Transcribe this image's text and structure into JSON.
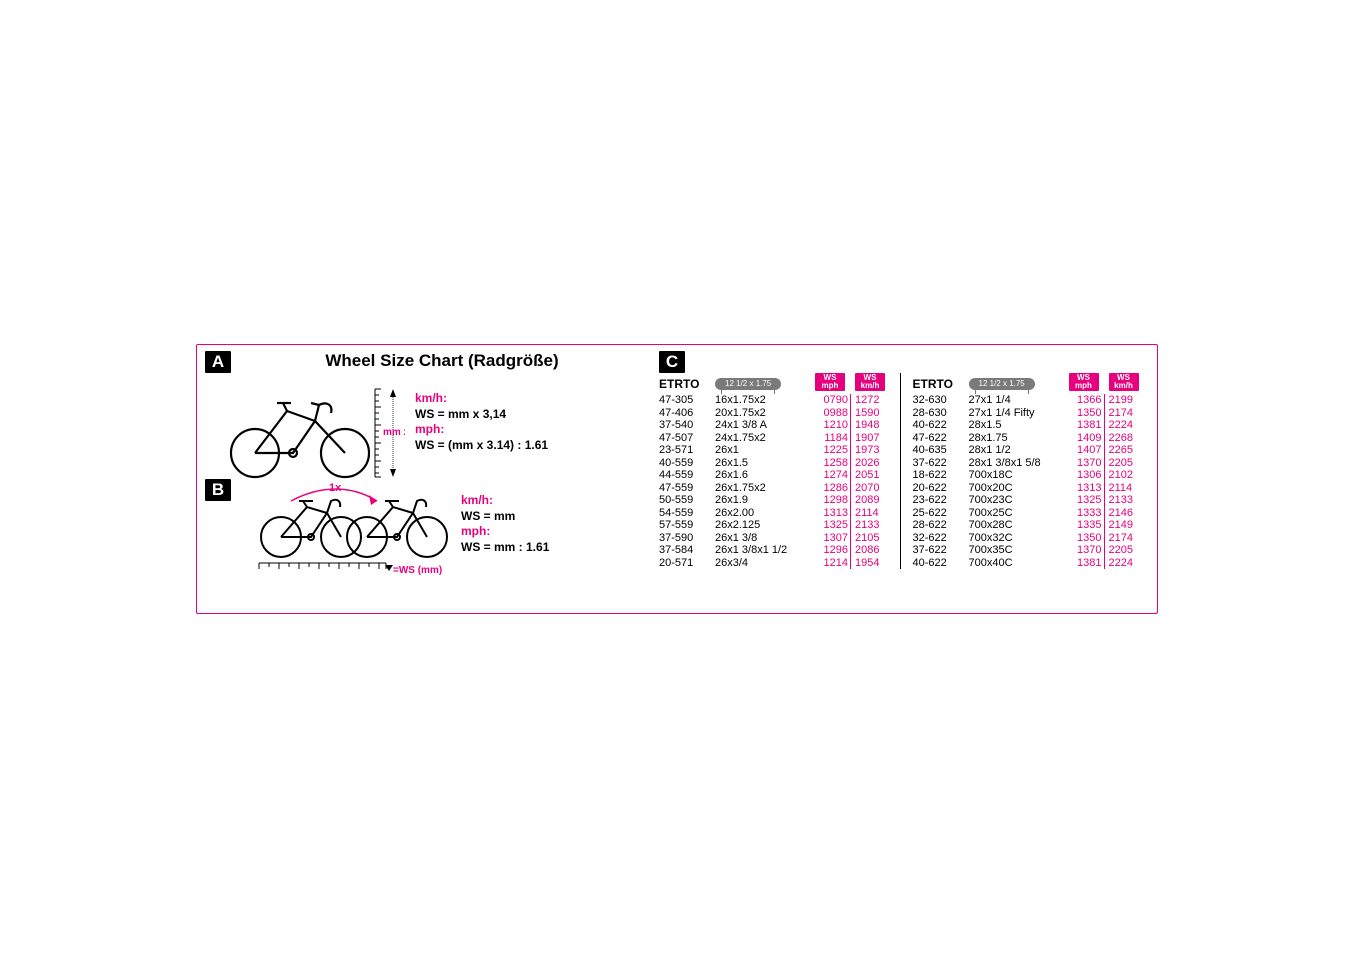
{
  "title": "Wheel Size Chart (Radgröße)",
  "panelA": {
    "badge": "A",
    "mm_label": "mm  x 3,14",
    "formulas": {
      "kmh_label": "km/h:",
      "kmh_formula": "WS = mm x 3,14",
      "mph_label": "mph:",
      "mph_formula": "WS = (mm x 3.14) : 1.61"
    }
  },
  "panelB": {
    "badge": "B",
    "onex": "1x",
    "ws_label": "=WS (mm)",
    "formulas": {
      "kmh_label": "km/h:",
      "kmh_formula": "WS = mm",
      "mph_label": "mph:",
      "mph_formula": "WS = mm : 1.61"
    }
  },
  "panelC": {
    "badge": "C",
    "etrto_label": "ETRTO",
    "tyre_badge": "12 1/2 x 1.75",
    "ws_mph_top": "WS",
    "ws_mph_sub": "mph",
    "ws_kmh_top": "WS",
    "ws_kmh_sub": "km/h"
  },
  "table_left": [
    {
      "etrto": "47-305",
      "size": "16x1.75x2",
      "mph": "0790",
      "kmh": "1272"
    },
    {
      "etrto": "47-406",
      "size": "20x1.75x2",
      "mph": "0988",
      "kmh": "1590"
    },
    {
      "etrto": "37-540",
      "size": "24x1 3/8 A",
      "mph": "1210",
      "kmh": "1948"
    },
    {
      "etrto": "47-507",
      "size": "24x1.75x2",
      "mph": "1184",
      "kmh": "1907"
    },
    {
      "etrto": "23-571",
      "size": "26x1",
      "mph": "1225",
      "kmh": "1973"
    },
    {
      "etrto": "40-559",
      "size": "26x1.5",
      "mph": "1258",
      "kmh": "2026"
    },
    {
      "etrto": "44-559",
      "size": "26x1.6",
      "mph": "1274",
      "kmh": "2051"
    },
    {
      "etrto": "47-559",
      "size": "26x1.75x2",
      "mph": "1286",
      "kmh": "2070"
    },
    {
      "etrto": "50-559",
      "size": "26x1.9",
      "mph": "1298",
      "kmh": "2089"
    },
    {
      "etrto": "54-559",
      "size": "26x2.00",
      "mph": "1313",
      "kmh": "2114"
    },
    {
      "etrto": "57-559",
      "size": "26x2.125",
      "mph": "1325",
      "kmh": "2133"
    },
    {
      "etrto": "37-590",
      "size": "26x1 3/8",
      "mph": "1307",
      "kmh": "2105"
    },
    {
      "etrto": "37-584",
      "size": "26x1 3/8x1 1/2",
      "mph": "1296",
      "kmh": "2086"
    },
    {
      "etrto": "20-571",
      "size": "26x3/4",
      "mph": "1214",
      "kmh": "1954"
    }
  ],
  "table_right": [
    {
      "etrto": "32-630",
      "size": "27x1 1/4",
      "mph": "1366",
      "kmh": "2199"
    },
    {
      "etrto": "28-630",
      "size": "27x1 1/4 Fifty",
      "mph": "1350",
      "kmh": "2174"
    },
    {
      "etrto": "40-622",
      "size": "28x1.5",
      "mph": "1381",
      "kmh": "2224"
    },
    {
      "etrto": "47-622",
      "size": "28x1.75",
      "mph": "1409",
      "kmh": "2268"
    },
    {
      "etrto": "40-635",
      "size": "28x1 1/2",
      "mph": "1407",
      "kmh": "2265"
    },
    {
      "etrto": "37-622",
      "size": "28x1 3/8x1 5/8",
      "mph": "1370",
      "kmh": "2205"
    },
    {
      "etrto": "18-622",
      "size": "700x18C",
      "mph": "1306",
      "kmh": "2102"
    },
    {
      "etrto": "20-622",
      "size": "700x20C",
      "mph": "1313",
      "kmh": "2114"
    },
    {
      "etrto": "23-622",
      "size": "700x23C",
      "mph": "1325",
      "kmh": "2133"
    },
    {
      "etrto": "25-622",
      "size": "700x25C",
      "mph": "1333",
      "kmh": "2146"
    },
    {
      "etrto": "28-622",
      "size": "700x28C",
      "mph": "1335",
      "kmh": "2149"
    },
    {
      "etrto": "32-622",
      "size": "700x32C",
      "mph": "1350",
      "kmh": "2174"
    },
    {
      "etrto": "37-622",
      "size": "700x35C",
      "mph": "1370",
      "kmh": "2205"
    },
    {
      "etrto": "40-622",
      "size": "700x40C",
      "mph": "1381",
      "kmh": "2224"
    }
  ],
  "colors": {
    "accent": "#e6007e",
    "black": "#000000",
    "grey": "#7a7a7a"
  }
}
